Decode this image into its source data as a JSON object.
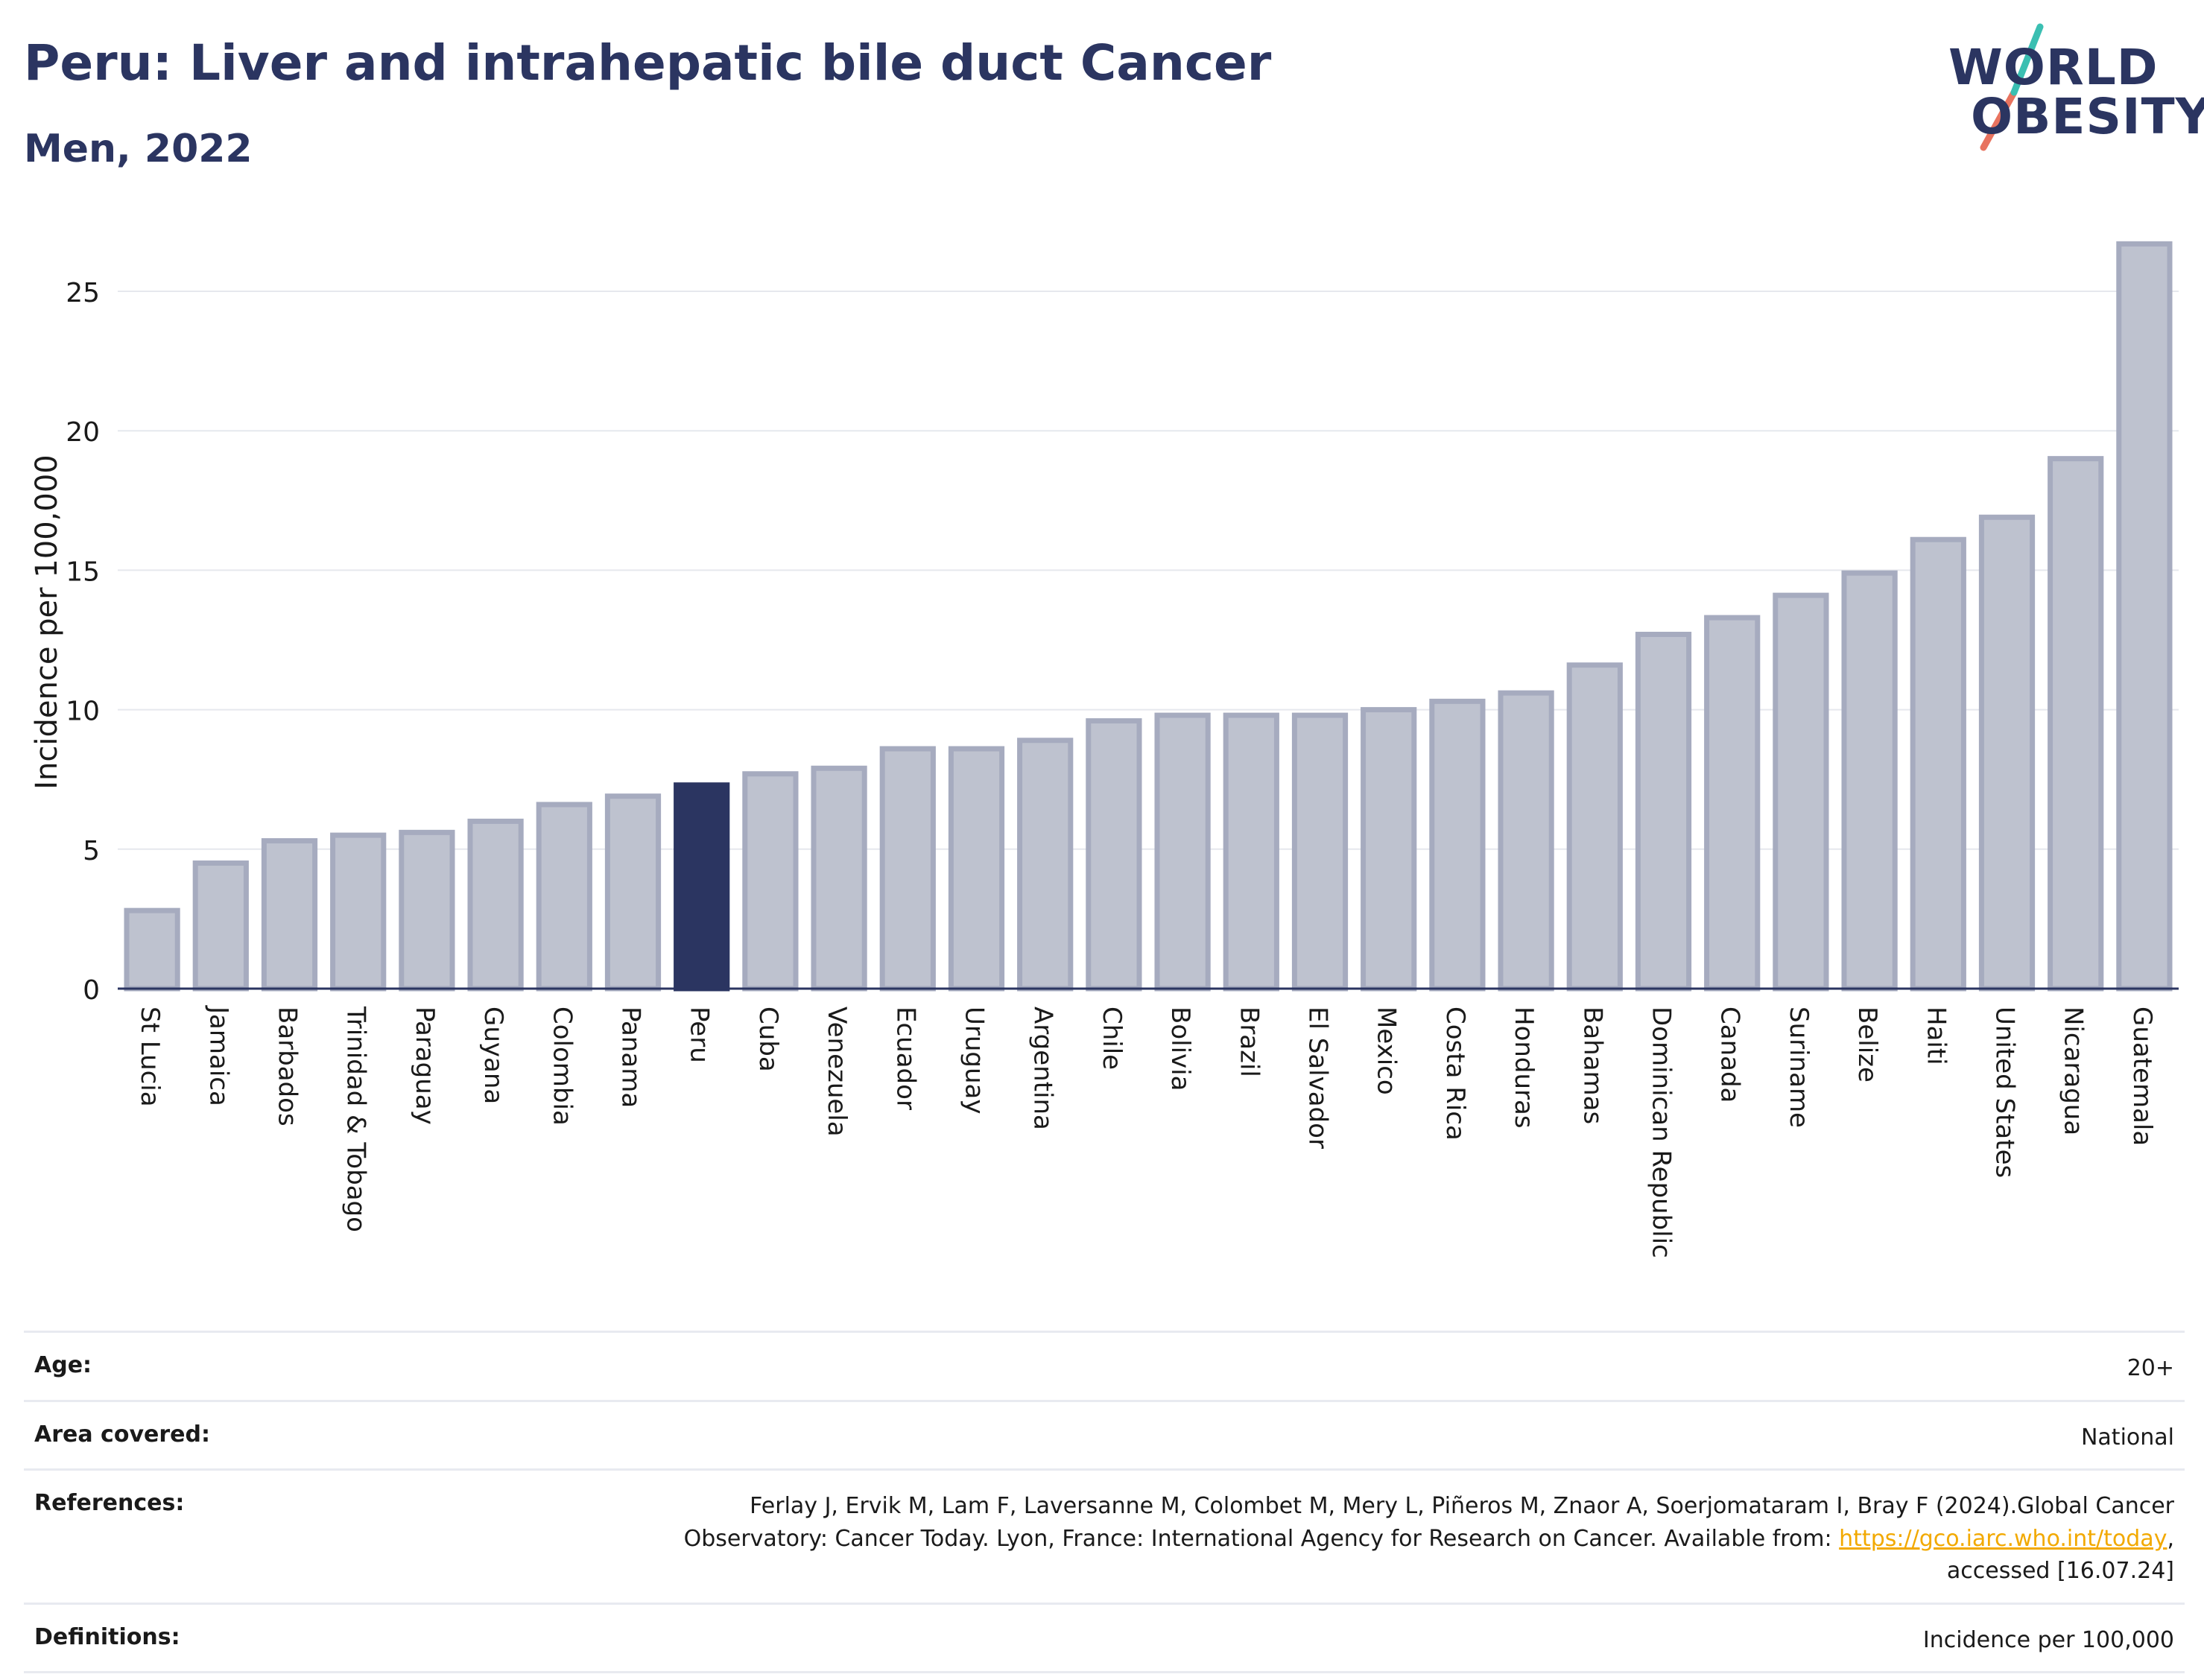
{
  "header": {
    "title": "Peru: Liver and intrahepatic bile duct Cancer",
    "subtitle": "Men, 2022"
  },
  "logo": {
    "line1": "WORLD",
    "line2": "OBESITY",
    "accent_color_teal": "#3bbfb2",
    "accent_color_coral": "#e8735f"
  },
  "chart_data": {
    "type": "bar",
    "ylabel": "Incidence per 100,000",
    "xlabel": "",
    "ylim": [
      0,
      27
    ],
    "yticks": [
      0,
      5,
      10,
      15,
      20,
      25
    ],
    "grid": true,
    "highlight": "Peru",
    "highlight_color": "#2b3561",
    "bar_color": "#bec2cf",
    "bar_edge_color": "#a6abbf",
    "categories": [
      "St Lucia",
      "Jamaica",
      "Barbados",
      "Trinidad & Tobago",
      "Paraguay",
      "Guyana",
      "Colombia",
      "Panama",
      "Peru",
      "Cuba",
      "Venezuela",
      "Ecuador",
      "Uruguay",
      "Argentina",
      "Chile",
      "Bolivia",
      "Brazil",
      "El Salvador",
      "Mexico",
      "Costa Rica",
      "Honduras",
      "Bahamas",
      "Dominican Republic",
      "Canada",
      "Suriname",
      "Belize",
      "Haiti",
      "United States",
      "Nicaragua",
      "Guatemala"
    ],
    "values": [
      2.8,
      4.5,
      5.3,
      5.5,
      5.6,
      6.0,
      6.6,
      6.9,
      7.3,
      7.7,
      7.9,
      8.6,
      8.6,
      8.9,
      9.6,
      9.8,
      9.8,
      9.8,
      10.0,
      10.3,
      10.6,
      11.6,
      12.7,
      13.3,
      14.1,
      14.9,
      16.1,
      16.9,
      19.0,
      26.7
    ]
  },
  "info": {
    "age_label": "Age:",
    "age_value": "20+",
    "area_label": "Area covered:",
    "area_value": "National",
    "references_label": "References:",
    "references_line1": "Ferlay J, Ervik M, Lam F, Laversanne M, Colombet M, Mery L, Piñeros M, Znaor A, Soerjomataram I, Bray F (2024).Global Cancer",
    "references_line2_pre": "Observatory: Cancer Today. Lyon, France: International Agency for Research on Cancer. Available from: ",
    "references_link": "https://gco.iarc.who.int/today",
    "references_line2_post": ",",
    "references_line3": "accessed [16.07.24]",
    "definitions_label": "Definitions:",
    "definitions_value": "Incidence per 100,000"
  }
}
